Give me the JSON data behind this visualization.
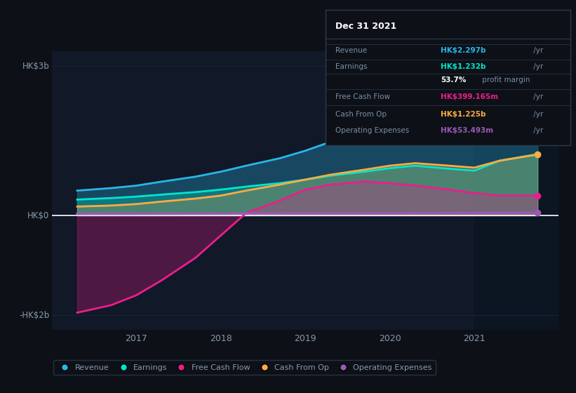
{
  "bg_color": "#0d1117",
  "plot_bg": "#111827",
  "grid_color": "#1a2535",
  "years": [
    2016.3,
    2016.7,
    2017.0,
    2017.3,
    2017.7,
    2018.0,
    2018.3,
    2018.7,
    2019.0,
    2019.3,
    2019.7,
    2020.0,
    2020.3,
    2020.7,
    2021.0,
    2021.3,
    2021.75
  ],
  "revenue": [
    0.5,
    0.55,
    0.6,
    0.68,
    0.78,
    0.88,
    1.0,
    1.15,
    1.3,
    1.48,
    1.62,
    1.75,
    1.85,
    1.75,
    1.7,
    2.05,
    2.297
  ],
  "earnings": [
    0.32,
    0.35,
    0.38,
    0.42,
    0.47,
    0.52,
    0.58,
    0.65,
    0.72,
    0.8,
    0.88,
    0.95,
    1.0,
    0.94,
    0.9,
    1.1,
    1.232
  ],
  "free_cash_flow": [
    -1.95,
    -1.8,
    -1.6,
    -1.3,
    -0.85,
    -0.4,
    0.05,
    0.3,
    0.52,
    0.62,
    0.68,
    0.65,
    0.6,
    0.52,
    0.45,
    0.4,
    0.399
  ],
  "cash_from_op": [
    0.18,
    0.2,
    0.23,
    0.28,
    0.34,
    0.4,
    0.5,
    0.62,
    0.72,
    0.82,
    0.92,
    1.0,
    1.05,
    1.0,
    0.96,
    1.1,
    1.225
  ],
  "operating_expenses": [
    0.035,
    0.036,
    0.036,
    0.037,
    0.038,
    0.039,
    0.04,
    0.041,
    0.042,
    0.043,
    0.044,
    0.046,
    0.047,
    0.049,
    0.05,
    0.051,
    0.053
  ],
  "revenue_color": "#29b5e8",
  "earnings_color": "#00e5cc",
  "free_cash_flow_color": "#e91e8c",
  "cash_from_op_color": "#ffab40",
  "operating_expenses_color": "#9b59b6",
  "ylim": [
    -2.3,
    3.3
  ],
  "xlim_left": 2016.0,
  "xlim_right": 2022.0,
  "ytick_positions": [
    -2.0,
    0.0,
    3.0
  ],
  "ytick_labels": [
    "-HK$2b",
    "HK$0",
    "HK$3b"
  ],
  "xtick_positions": [
    2017,
    2018,
    2019,
    2020,
    2021
  ],
  "xtick_labels": [
    "2017",
    "2018",
    "2019",
    "2020",
    "2021"
  ],
  "vline_x": 2021.0,
  "zero_line_color": "#ffffff",
  "info_box_title": "Dec 31 2021",
  "info_rows": [
    {
      "label": "Revenue",
      "value": "HK$2.297b",
      "suffix": " /yr",
      "value_color": "#29b5e8",
      "bold_prefix": null
    },
    {
      "label": "Earnings",
      "value": "HK$1.232b",
      "suffix": " /yr",
      "value_color": "#00e5cc",
      "bold_prefix": null
    },
    {
      "label": "",
      "value": "profit margin",
      "suffix": "",
      "value_color": "#aabbcc",
      "bold_prefix": "53.7%"
    },
    {
      "label": "Free Cash Flow",
      "value": "HK$399.165m",
      "suffix": " /yr",
      "value_color": "#e91e8c",
      "bold_prefix": null
    },
    {
      "label": "Cash From Op",
      "value": "HK$1.225b",
      "suffix": " /yr",
      "value_color": "#ffab40",
      "bold_prefix": null
    },
    {
      "label": "Operating Expenses",
      "value": "HK$53.493m",
      "suffix": " /yr",
      "value_color": "#9b59b6",
      "bold_prefix": null
    }
  ],
  "legend_items": [
    {
      "label": "Revenue",
      "color": "#29b5e8"
    },
    {
      "label": "Earnings",
      "color": "#00e5cc"
    },
    {
      "label": "Free Cash Flow",
      "color": "#e91e8c"
    },
    {
      "label": "Cash From Op",
      "color": "#ffab40"
    },
    {
      "label": "Operating Expenses",
      "color": "#9b59b6"
    }
  ]
}
